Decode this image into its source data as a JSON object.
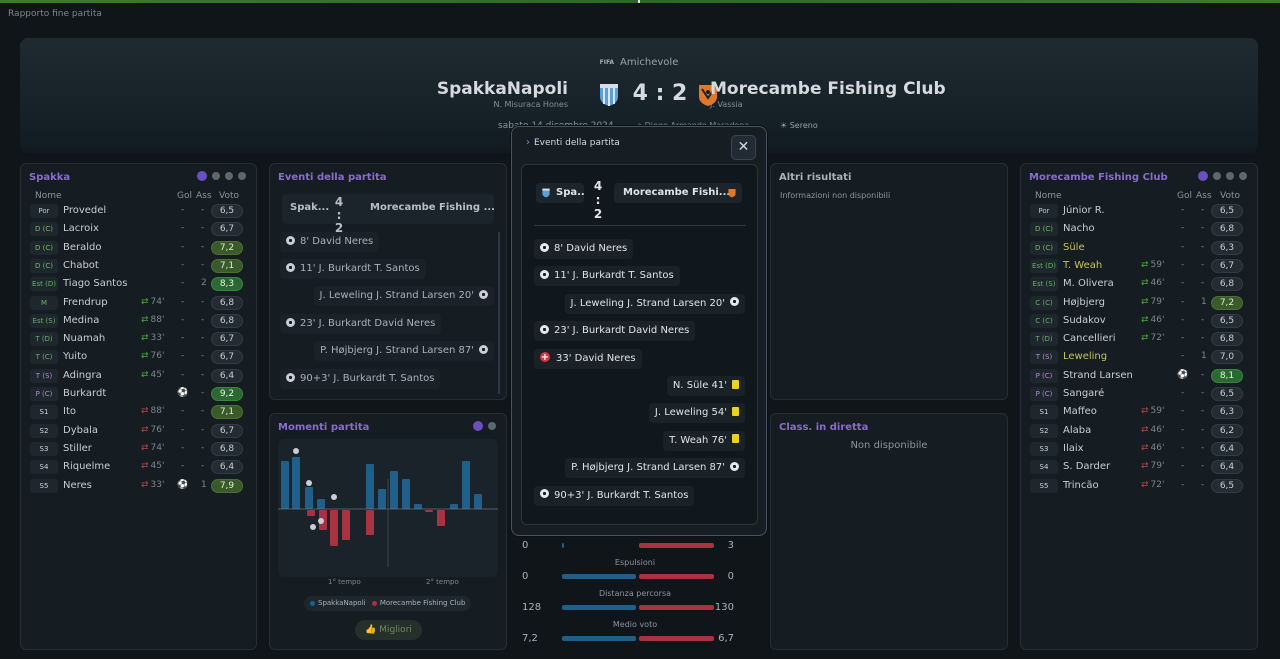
{
  "page_title": "Rapporto fine partita",
  "match": {
    "competition_logo": "FIFA",
    "competition": "Amichevole",
    "home_team": "SpakkaNapoli",
    "home_coach": "N. Misuraca Hones",
    "away_team": "Morecambe Fishing Club",
    "away_coach": "J. Vassia",
    "score": "4 : 2",
    "date": "sabato 14 dicembre 2024",
    "stadium": "Diego Armando Maradona",
    "weather": "Sereno"
  },
  "home_lineup": {
    "title": "Spakka",
    "col_name": "Nome",
    "col_goals": "Gol",
    "col_assists": "Ass",
    "col_rating": "Voto",
    "players": [
      {
        "pos": "Por",
        "name": "Provedel",
        "sub": "",
        "goals": "-",
        "assists": "-",
        "rating": "6,5",
        "tier": ""
      },
      {
        "pos": "D (C)",
        "name": "Lacroix",
        "sub": "",
        "goals": "-",
        "assists": "-",
        "rating": "6,7",
        "tier": ""
      },
      {
        "pos": "D (C)",
        "name": "Beraldo",
        "sub": "",
        "goals": "-",
        "assists": "-",
        "rating": "7,2",
        "tier": "good"
      },
      {
        "pos": "D (C)",
        "name": "Chabot",
        "sub": "",
        "goals": "-",
        "assists": "-",
        "rating": "7,1",
        "tier": "good"
      },
      {
        "pos": "Est (D)",
        "name": "Tiago Santos",
        "sub": "",
        "goals": "-",
        "assists": "2",
        "rating": "8,3",
        "tier": "vgood"
      },
      {
        "pos": "M",
        "name": "Frendrup",
        "sub": "74'",
        "goals": "-",
        "assists": "-",
        "rating": "6,8",
        "tier": ""
      },
      {
        "pos": "Est (S)",
        "name": "Medina",
        "sub": "88'",
        "goals": "-",
        "assists": "-",
        "rating": "6,8",
        "tier": ""
      },
      {
        "pos": "T (D)",
        "name": "Nuamah",
        "sub": "33'",
        "goals": "-",
        "assists": "-",
        "rating": "6,7",
        "tier": ""
      },
      {
        "pos": "T (C)",
        "name": "Yuito",
        "sub": "76'",
        "goals": "-",
        "assists": "-",
        "rating": "6,7",
        "tier": ""
      },
      {
        "pos": "T (S)",
        "name": "Adingra",
        "sub": "45'",
        "goals": "-",
        "assists": "-",
        "rating": "6,4",
        "tier": ""
      },
      {
        "pos": "P (C)",
        "name": "Burkardt",
        "sub": "",
        "goals": "",
        "assists": "-",
        "rating": "9,2",
        "tier": "vgood"
      },
      {
        "pos": "S1",
        "name": "Ito",
        "sub": "88'",
        "goals": "-",
        "assists": "-",
        "rating": "7,1",
        "tier": "good"
      },
      {
        "pos": "S2",
        "name": "Dybala",
        "sub": "76'",
        "goals": "-",
        "assists": "-",
        "rating": "6,7",
        "tier": ""
      },
      {
        "pos": "S3",
        "name": "Stiller",
        "sub": "74'",
        "goals": "-",
        "assists": "-",
        "rating": "6,8",
        "tier": ""
      },
      {
        "pos": "S4",
        "name": "Riquelme",
        "sub": "45'",
        "goals": "-",
        "assists": "-",
        "rating": "6,4",
        "tier": ""
      },
      {
        "pos": "S5",
        "name": "Neres",
        "sub": "33'",
        "goals": "",
        "assists": "1",
        "rating": "7,9",
        "tier": "good"
      }
    ]
  },
  "away_lineup": {
    "title": "Morecambe Fishing Club",
    "col_name": "Nome",
    "col_goals": "Gol",
    "col_assists": "Ass",
    "col_rating": "Voto",
    "players": [
      {
        "pos": "Por",
        "name": "Júnior R.",
        "sub": "",
        "goals": "-",
        "assists": "-",
        "rating": "6,5",
        "tier": ""
      },
      {
        "pos": "D (C)",
        "name": "Nacho",
        "sub": "",
        "goals": "-",
        "assists": "-",
        "rating": "6,8",
        "tier": ""
      },
      {
        "pos": "D (C)",
        "name": "Süle",
        "sub": "",
        "goals": "-",
        "assists": "-",
        "rating": "6,3",
        "tier": ""
      },
      {
        "pos": "Est (D)",
        "name": "T. Weah",
        "sub": "59'",
        "goals": "-",
        "assists": "-",
        "rating": "6,7",
        "tier": ""
      },
      {
        "pos": "Est (S)",
        "name": "M. Olivera",
        "sub": "46'",
        "goals": "-",
        "assists": "-",
        "rating": "6,8",
        "tier": ""
      },
      {
        "pos": "C (C)",
        "name": "Højbjerg",
        "sub": "79'",
        "goals": "-",
        "assists": "1",
        "rating": "7,2",
        "tier": "good"
      },
      {
        "pos": "C (C)",
        "name": "Sudakov",
        "sub": "46'",
        "goals": "-",
        "assists": "-",
        "rating": "6,5",
        "tier": ""
      },
      {
        "pos": "T (D)",
        "name": "Cancellieri",
        "sub": "72'",
        "goals": "-",
        "assists": "-",
        "rating": "6,8",
        "tier": ""
      },
      {
        "pos": "T (S)",
        "name": "Leweling",
        "sub": "",
        "goals": "-",
        "assists": "1",
        "rating": "7,0",
        "tier": ""
      },
      {
        "pos": "P (C)",
        "name": "Strand Larsen",
        "sub": "",
        "goals": "",
        "assists": "-",
        "rating": "8,1",
        "tier": "vgood"
      },
      {
        "pos": "P (C)",
        "name": "Sangaré",
        "sub": "",
        "goals": "-",
        "assists": "-",
        "rating": "6,5",
        "tier": ""
      },
      {
        "pos": "S1",
        "name": "Maffeo",
        "sub": "59'",
        "goals": "-",
        "assists": "-",
        "rating": "6,3",
        "tier": ""
      },
      {
        "pos": "S2",
        "name": "Alaba",
        "sub": "46'",
        "goals": "-",
        "assists": "-",
        "rating": "6,2",
        "tier": ""
      },
      {
        "pos": "S3",
        "name": "Ilaix",
        "sub": "46'",
        "goals": "-",
        "assists": "-",
        "rating": "6,4",
        "tier": ""
      },
      {
        "pos": "S4",
        "name": "S. Darder",
        "sub": "79'",
        "goals": "-",
        "assists": "-",
        "rating": "6,4",
        "tier": ""
      },
      {
        "pos": "S5",
        "name": "Trincão",
        "sub": "72'",
        "goals": "-",
        "assists": "-",
        "rating": "6,5",
        "tier": ""
      }
    ]
  },
  "events_panel": {
    "title": "Eventi della partita",
    "home_short": "Spak...",
    "away_short": "Morecambe Fishing ...",
    "score_home": "4 :",
    "score_away": "2",
    "events": [
      {
        "text": "8' David Neres",
        "side": "home"
      },
      {
        "text": "11' J. Burkardt T. Santos",
        "side": "home"
      },
      {
        "text": "J. Leweling J. Strand Larsen 20'",
        "side": "away"
      },
      {
        "text": "23' J. Burkardt David Neres",
        "side": "home"
      },
      {
        "text": "P. Højbjerg J. Strand Larsen 87'",
        "side": "away"
      },
      {
        "text": "90+3' J. Burkardt T. Santos",
        "side": "home"
      }
    ]
  },
  "moments": {
    "title": "Momenti partita",
    "tick_first": "1° tempo",
    "tick_second": "2° tempo",
    "legend_home": "SpakkaNapoli",
    "legend_away": "Morecambe Fishing Club",
    "best_button": "Migliori",
    "home_color": "#1f5f8a",
    "away_color": "#a8323f"
  },
  "stats": {
    "rows": [
      {
        "label": "",
        "home": "0",
        "away": "3"
      },
      {
        "label": "Espulsioni",
        "home": "0",
        "away": "0"
      },
      {
        "label": "Distanza percorsa",
        "home": "128",
        "away": "130"
      },
      {
        "label": "Medio voto",
        "home": "7,2",
        "away": "6,7"
      }
    ]
  },
  "other_results": {
    "title": "Altri risultati",
    "info": "Informazioni non disponibili"
  },
  "live_table": {
    "title": "Class. in diretta",
    "info": "Non disponibile"
  },
  "modal": {
    "title": "Eventi della partita",
    "close_icon": "close-icon",
    "home_short": "Spa...",
    "away_short": "Morecambe Fishi...",
    "score_home": "4 :",
    "score_away": "2",
    "events": [
      {
        "text": "8' David Neres",
        "type": "goal",
        "side": "home"
      },
      {
        "text": "11' J. Burkardt T. Santos",
        "type": "goal",
        "side": "home"
      },
      {
        "text": "J. Leweling J. Strand Larsen 20'",
        "type": "goal",
        "side": "away"
      },
      {
        "text": "23' J. Burkardt David Neres",
        "type": "goal",
        "side": "home"
      },
      {
        "text": "33' David Neres",
        "type": "injury",
        "side": "home"
      },
      {
        "text": "N. Süle 41'",
        "type": "yellow",
        "side": "away"
      },
      {
        "text": "J. Leweling 54'",
        "type": "yellow",
        "side": "away"
      },
      {
        "text": "T. Weah 76'",
        "type": "yellow",
        "side": "away"
      },
      {
        "text": "P. Højbjerg J. Strand Larsen 87'",
        "type": "goal",
        "side": "away"
      },
      {
        "text": "90+3' J. Burkardt T. Santos",
        "type": "goal",
        "side": "home"
      }
    ]
  }
}
